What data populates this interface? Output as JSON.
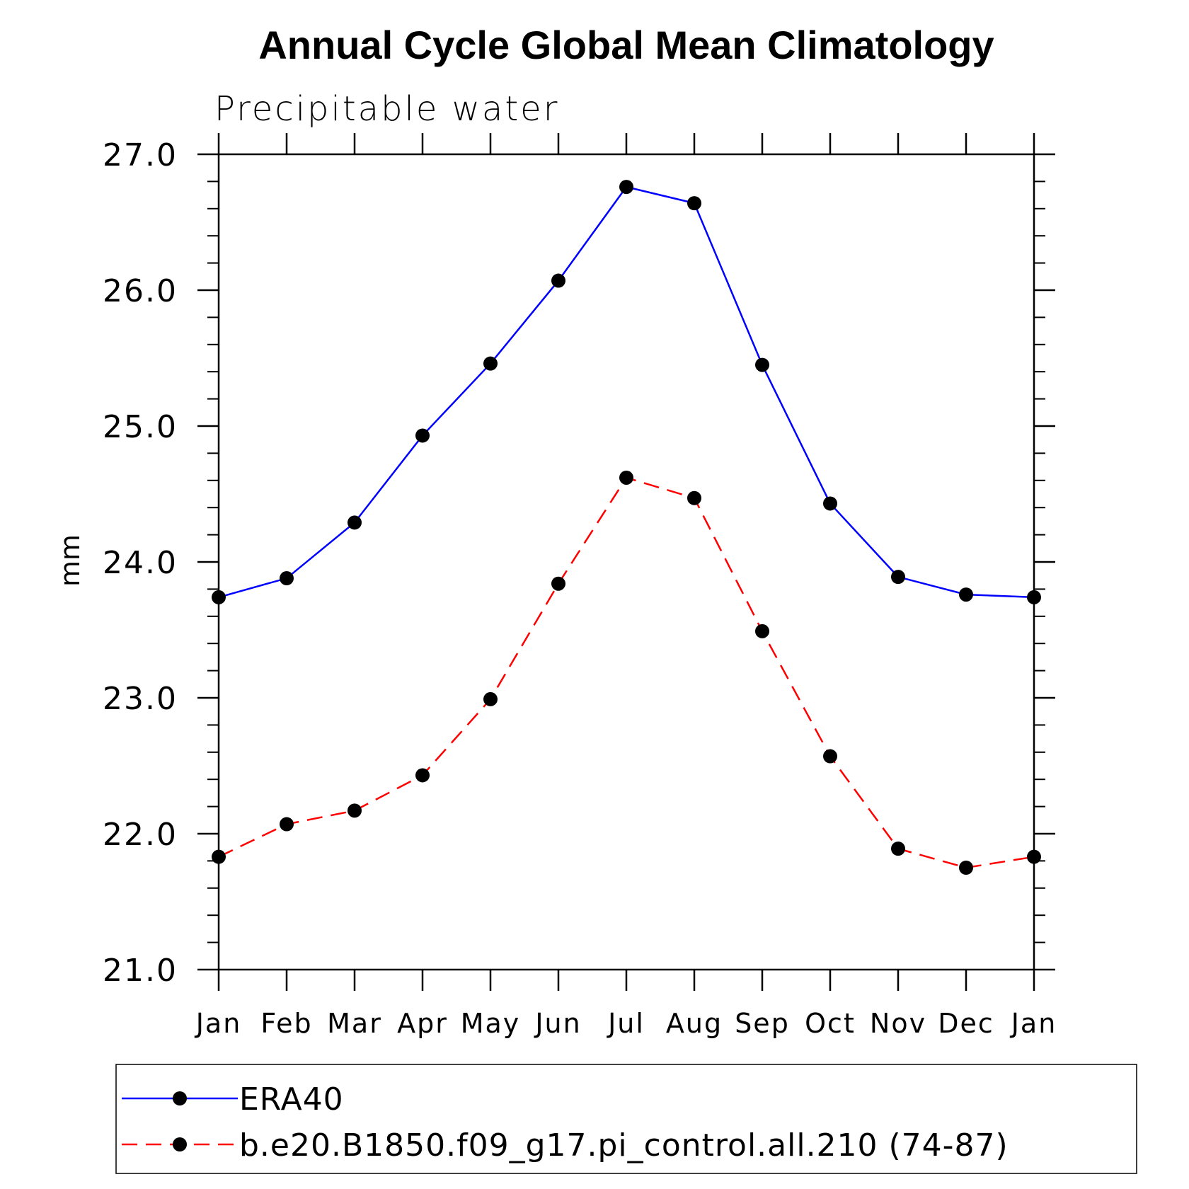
{
  "chart_data": {
    "type": "line",
    "title": "Annual Cycle Global Mean Climatology",
    "subtitle": "Precipitable water",
    "xlabel": "",
    "ylabel": "mm",
    "categories": [
      "Jan",
      "Feb",
      "Mar",
      "Apr",
      "May",
      "Jun",
      "Jul",
      "Aug",
      "Sep",
      "Oct",
      "Nov",
      "Dec",
      "Jan"
    ],
    "ylim": [
      21.0,
      27.0
    ],
    "yticks": [
      "21.0",
      "22.0",
      "23.0",
      "24.0",
      "25.0",
      "26.0",
      "27.0"
    ],
    "y_minor_step": 0.2,
    "grid": false,
    "legend_position": "bottom",
    "series": [
      {
        "name": "ERA40",
        "color": "#0000ff",
        "line_style": "solid",
        "marker": "filled-circle",
        "values": [
          23.74,
          23.88,
          24.29,
          24.93,
          25.46,
          26.07,
          26.76,
          26.64,
          25.45,
          24.43,
          23.89,
          23.76,
          23.74
        ]
      },
      {
        "name": "b.e20.B1850.f09_g17.pi_control.all.210 (74-87)",
        "color": "#ff0000",
        "line_style": "dashed",
        "marker": "filled-circle",
        "values": [
          21.83,
          22.07,
          22.17,
          22.43,
          22.99,
          23.84,
          24.62,
          24.47,
          23.49,
          22.57,
          21.89,
          21.75,
          21.83
        ]
      }
    ]
  }
}
